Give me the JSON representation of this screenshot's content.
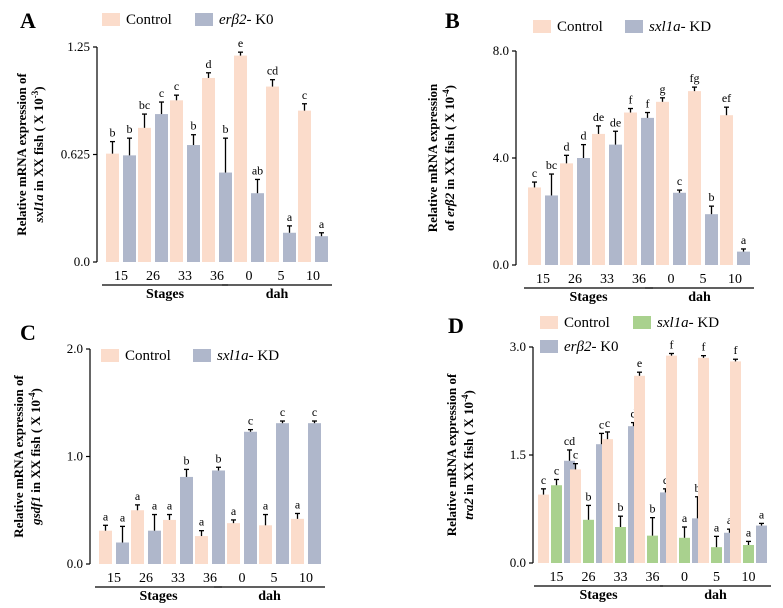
{
  "chart_data": [
    {
      "panel": "A",
      "type": "bar",
      "ylabel_line1": "Relative mRNA expression of",
      "ylabel_italic": "sxl1a",
      "ylabel_rest": " in XX fish ( X 10",
      "ylabel_exp": "-3",
      "ylabel_close": ")",
      "yticks": [
        "0.0",
        "0.625",
        "1.25"
      ],
      "ylim": [
        0,
        1.25
      ],
      "categories": [
        "15",
        "26",
        "33",
        "36",
        "0",
        "5",
        "10"
      ],
      "groups": [
        {
          "label": "Stages",
          "categories": [
            "15",
            "26",
            "33",
            "36"
          ]
        },
        {
          "label": "dah",
          "categories": [
            "0",
            "5",
            "10"
          ]
        }
      ],
      "legend": [
        {
          "name": "Control",
          "italic": "",
          "suffix": "",
          "color": "#FBDCCB"
        },
        {
          "name": "",
          "italic": "erβ2",
          "suffix": "- K0",
          "color": "#AFB7CB"
        }
      ],
      "series": [
        {
          "name": "Control",
          "color": "#FBDCCB",
          "values": [
            0.63,
            0.78,
            0.94,
            1.07,
            1.2,
            1.02,
            0.88
          ],
          "errors": [
            0.07,
            0.08,
            0.03,
            0.03,
            0.02,
            0.04,
            0.04
          ],
          "letters": [
            "b",
            "bc",
            "c",
            "d",
            "e",
            "cd",
            "c"
          ]
        },
        {
          "name": "erβ2- K0",
          "color": "#AFB7CB",
          "values": [
            0.62,
            0.86,
            0.68,
            0.52,
            0.4,
            0.17,
            0.15
          ],
          "errors": [
            0.1,
            0.07,
            0.06,
            0.2,
            0.08,
            0.04,
            0.02
          ],
          "letters": [
            "b",
            "c",
            "b",
            "b",
            "ab",
            "a",
            "a"
          ]
        }
      ]
    },
    {
      "panel": "B",
      "type": "bar",
      "ylabel_line1": "Relative mRNA expression",
      "ylabel_pre": "of ",
      "ylabel_italic": "erβ2",
      "ylabel_rest": " in XX fish ( X 10",
      "ylabel_exp": "-4",
      "ylabel_close": ")",
      "yticks": [
        "0.0",
        "4.0",
        "8.0"
      ],
      "ylim": [
        0,
        8
      ],
      "categories": [
        "15",
        "26",
        "33",
        "36",
        "0",
        "5",
        "10"
      ],
      "groups": [
        {
          "label": "Stages",
          "categories": [
            "15",
            "26",
            "33",
            "36"
          ]
        },
        {
          "label": "dah",
          "categories": [
            "0",
            "5",
            "10"
          ]
        }
      ],
      "legend": [
        {
          "name": "Control",
          "italic": "",
          "suffix": "",
          "color": "#FBDCCB"
        },
        {
          "name": "",
          "italic": "sxl1a",
          "suffix": "- KD",
          "color": "#AFB7CB"
        }
      ],
      "series": [
        {
          "name": "Control",
          "color": "#FBDCCB",
          "values": [
            2.9,
            3.8,
            4.9,
            5.7,
            6.1,
            6.5,
            5.6
          ],
          "errors": [
            0.2,
            0.3,
            0.3,
            0.15,
            0.15,
            0.15,
            0.3
          ],
          "letters": [
            "c",
            "d",
            "de",
            "f",
            "g",
            "fg",
            "ef"
          ]
        },
        {
          "name": "sxl1a- KD",
          "color": "#AFB7CB",
          "values": [
            2.6,
            4.0,
            4.5,
            5.5,
            2.7,
            1.9,
            0.5
          ],
          "errors": [
            0.8,
            0.5,
            0.5,
            0.2,
            0.1,
            0.3,
            0.1
          ],
          "letters": [
            "bc",
            "d",
            "de",
            "f",
            "c",
            "b",
            "a"
          ]
        }
      ]
    },
    {
      "panel": "C",
      "type": "bar",
      "ylabel_line1": "Relative mRNA expression of",
      "ylabel_italic": "gsdf1",
      "ylabel_rest": " in XX fish ( X 10",
      "ylabel_exp": "-4",
      "ylabel_close": ")",
      "yticks": [
        "0.0",
        "1.0",
        "2.0"
      ],
      "ylim": [
        0,
        2
      ],
      "categories": [
        "15",
        "26",
        "33",
        "36",
        "0",
        "5",
        "10"
      ],
      "groups": [
        {
          "label": "Stages",
          "categories": [
            "15",
            "26",
            "33",
            "36"
          ]
        },
        {
          "label": "dah",
          "categories": [
            "0",
            "5",
            "10"
          ]
        }
      ],
      "legend": [
        {
          "name": "Control",
          "italic": "",
          "suffix": "",
          "color": "#FBDCCB"
        },
        {
          "name": "",
          "italic": "sxl1a",
          "suffix": "- KD",
          "color": "#AFB7CB"
        }
      ],
      "series": [
        {
          "name": "Control",
          "color": "#FBDCCB",
          "values": [
            0.31,
            0.5,
            0.41,
            0.26,
            0.38,
            0.36,
            0.42
          ],
          "errors": [
            0.05,
            0.05,
            0.05,
            0.05,
            0.03,
            0.1,
            0.05
          ],
          "letters": [
            "a",
            "a",
            "a",
            "a",
            "a",
            "a",
            "a"
          ]
        },
        {
          "name": "sxl1a- KD",
          "color": "#AFB7CB",
          "values": [
            0.2,
            0.31,
            0.81,
            0.87,
            1.23,
            1.31,
            1.31
          ],
          "errors": [
            0.15,
            0.15,
            0.07,
            0.03,
            0.02,
            0.02,
            0.02
          ],
          "letters": [
            "a",
            "a",
            "b",
            "b",
            "c",
            "c",
            "c"
          ]
        }
      ]
    },
    {
      "panel": "D",
      "type": "bar",
      "ylabel_line1": "Relative mRNA expression of",
      "ylabel_italic": "tra2",
      "ylabel_rest": " in XX fish ( X 10",
      "ylabel_exp": "-4",
      "ylabel_close": ")",
      "yticks": [
        "0.0",
        "1.5",
        "3.0"
      ],
      "ylim": [
        0,
        3
      ],
      "categories": [
        "15",
        "26",
        "33",
        "36",
        "0",
        "5",
        "10"
      ],
      "groups": [
        {
          "label": "Stages",
          "categories": [
            "15",
            "26",
            "33",
            "36"
          ]
        },
        {
          "label": "dah",
          "categories": [
            "0",
            "5",
            "10"
          ]
        }
      ],
      "legend": [
        {
          "name": "Control",
          "italic": "",
          "suffix": "",
          "color": "#FBDCCB"
        },
        {
          "name": "",
          "italic": "sxl1a",
          "suffix": "- KD",
          "color": "#A9D18E"
        },
        {
          "name": "",
          "italic": "erβ2",
          "suffix": "- K0",
          "color": "#AFB7CB"
        }
      ],
      "series": [
        {
          "name": "Control",
          "color": "#FBDCCB",
          "values": [
            0.95,
            1.3,
            1.72,
            2.6,
            2.88,
            2.85,
            2.8
          ],
          "errors": [
            0.08,
            0.08,
            0.1,
            0.05,
            0.03,
            0.03,
            0.03
          ],
          "letters": [
            "c",
            "c",
            "c",
            "e",
            "f",
            "f",
            "f"
          ]
        },
        {
          "name": "sxl1a- KD",
          "color": "#A9D18E",
          "values": [
            1.08,
            0.6,
            0.5,
            0.38,
            0.35,
            0.22,
            0.25
          ],
          "errors": [
            0.08,
            0.2,
            0.15,
            0.25,
            0.15,
            0.15,
            0.05
          ],
          "letters": [
            "c",
            "b",
            "b",
            "b",
            "a",
            "a",
            "a"
          ]
        },
        {
          "name": "erβ2- K0",
          "color": "#AFB7CB",
          "values": [
            1.42,
            1.65,
            1.9,
            0.98,
            0.62,
            0.42,
            0.52
          ],
          "errors": [
            0.15,
            0.15,
            0.05,
            0.05,
            0.3,
            0.05,
            0.03
          ],
          "letters": [
            "cd",
            "c",
            "d",
            "c",
            "b",
            "a",
            "a"
          ]
        }
      ]
    }
  ]
}
